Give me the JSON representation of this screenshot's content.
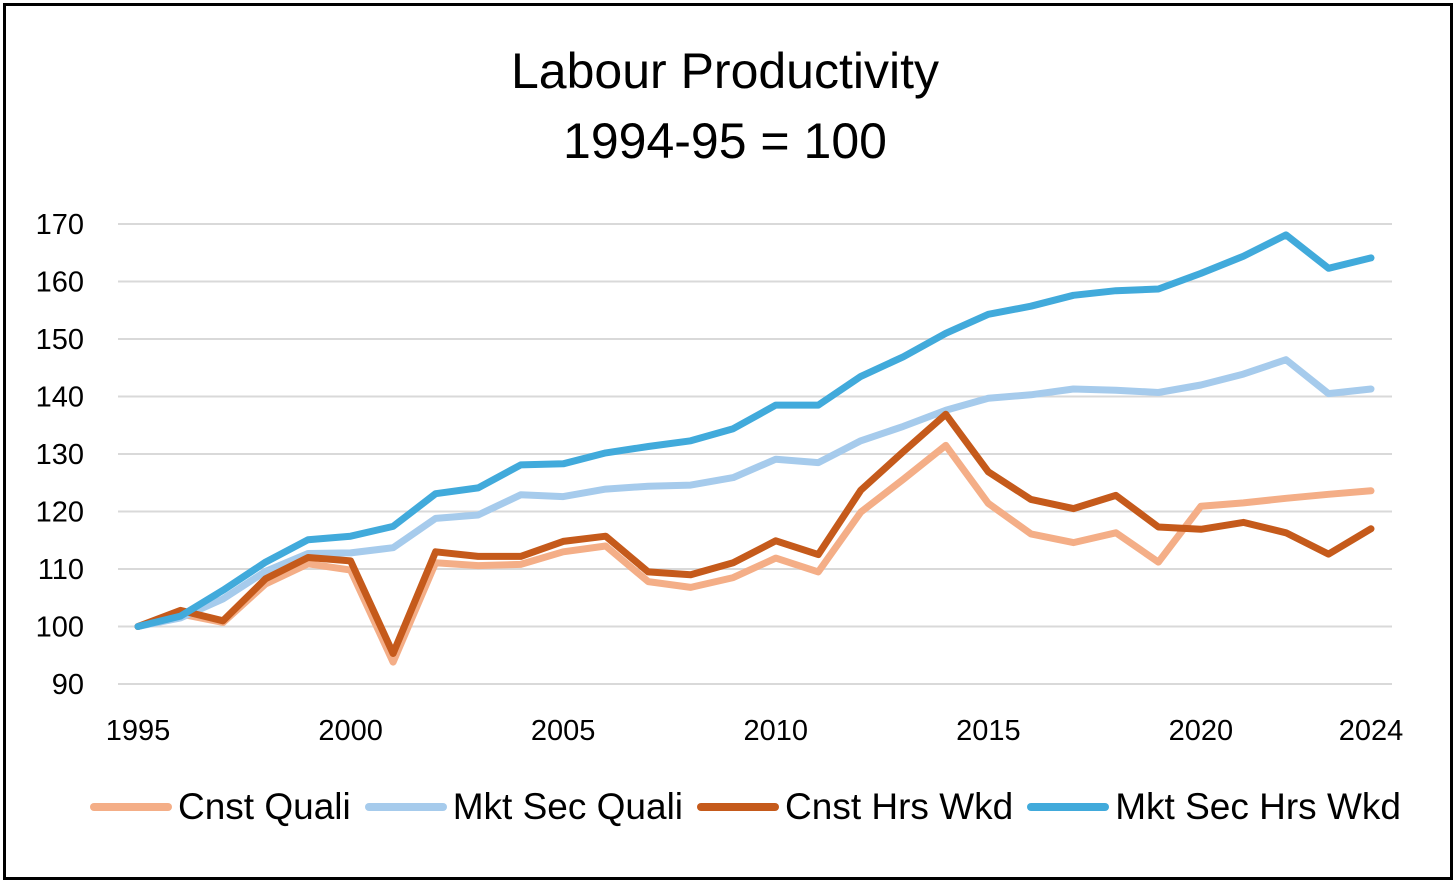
{
  "chart_data": {
    "type": "line",
    "title": "Labour Productivity",
    "subtitle": "1994-95 = 100",
    "ylim": [
      90,
      170
    ],
    "yticks": [
      90,
      100,
      110,
      120,
      130,
      140,
      150,
      160,
      170
    ],
    "xlim": [
      1995,
      2024
    ],
    "xticks": [
      1995,
      2000,
      2005,
      2010,
      2015,
      2020,
      2024
    ],
    "x": [
      1995,
      1996,
      1997,
      1998,
      1999,
      2000,
      2001,
      2002,
      2003,
      2004,
      2005,
      2006,
      2007,
      2008,
      2009,
      2010,
      2011,
      2012,
      2013,
      2014,
      2015,
      2016,
      2017,
      2018,
      2019,
      2020,
      2021,
      2022,
      2023,
      2024
    ],
    "grid": true,
    "legend_position": "bottom",
    "series": [
      {
        "name": "Cnst Quali",
        "color": "#F4AE87",
        "values": [
          100,
          102.2,
          100.7,
          107.4,
          110.9,
          109.8,
          93.8,
          111.1,
          110.6,
          110.8,
          113,
          114,
          107.8,
          106.8,
          108.5,
          111.9,
          109.5,
          119.9,
          125.6,
          131.5,
          121.4,
          116.1,
          114.6,
          116.3,
          111.2,
          120.9,
          121.5,
          122.3,
          123,
          123.6
        ]
      },
      {
        "name": "Mkt Sec Quali",
        "color": "#A6CBEC",
        "values": [
          100,
          101.5,
          104.8,
          109.6,
          112.7,
          112.8,
          113.7,
          118.8,
          119.4,
          122.9,
          122.6,
          123.9,
          124.4,
          124.6,
          125.9,
          129.1,
          128.5,
          132.3,
          134.8,
          137.6,
          139.7,
          140.3,
          141.3,
          141.1,
          140.7,
          142,
          143.9,
          146.4,
          140.5,
          141.3
        ]
      },
      {
        "name": "Cnst Hrs Wkd",
        "color": "#C55A1B",
        "values": [
          100,
          102.8,
          101,
          108.3,
          112,
          111.4,
          95.3,
          113,
          112.2,
          112.2,
          114.8,
          115.7,
          109.5,
          109,
          111.1,
          114.9,
          112.5,
          123.7,
          130.4,
          136.9,
          126.9,
          122.1,
          120.5,
          122.8,
          117.3,
          116.9,
          118.1,
          116.3,
          112.6,
          117
        ]
      },
      {
        "name": "Mkt Sec Hrs Wkd",
        "color": "#41AADB",
        "values": [
          100,
          101.8,
          106.3,
          111.2,
          115.1,
          115.7,
          117.4,
          123.1,
          124.1,
          128.1,
          128.3,
          130.2,
          131.3,
          132.3,
          134.4,
          138.5,
          138.5,
          143.5,
          146.9,
          151,
          154.3,
          155.7,
          157.6,
          158.4,
          158.7,
          161.4,
          164.4,
          168.1,
          162.3,
          164.1
        ]
      }
    ]
  }
}
